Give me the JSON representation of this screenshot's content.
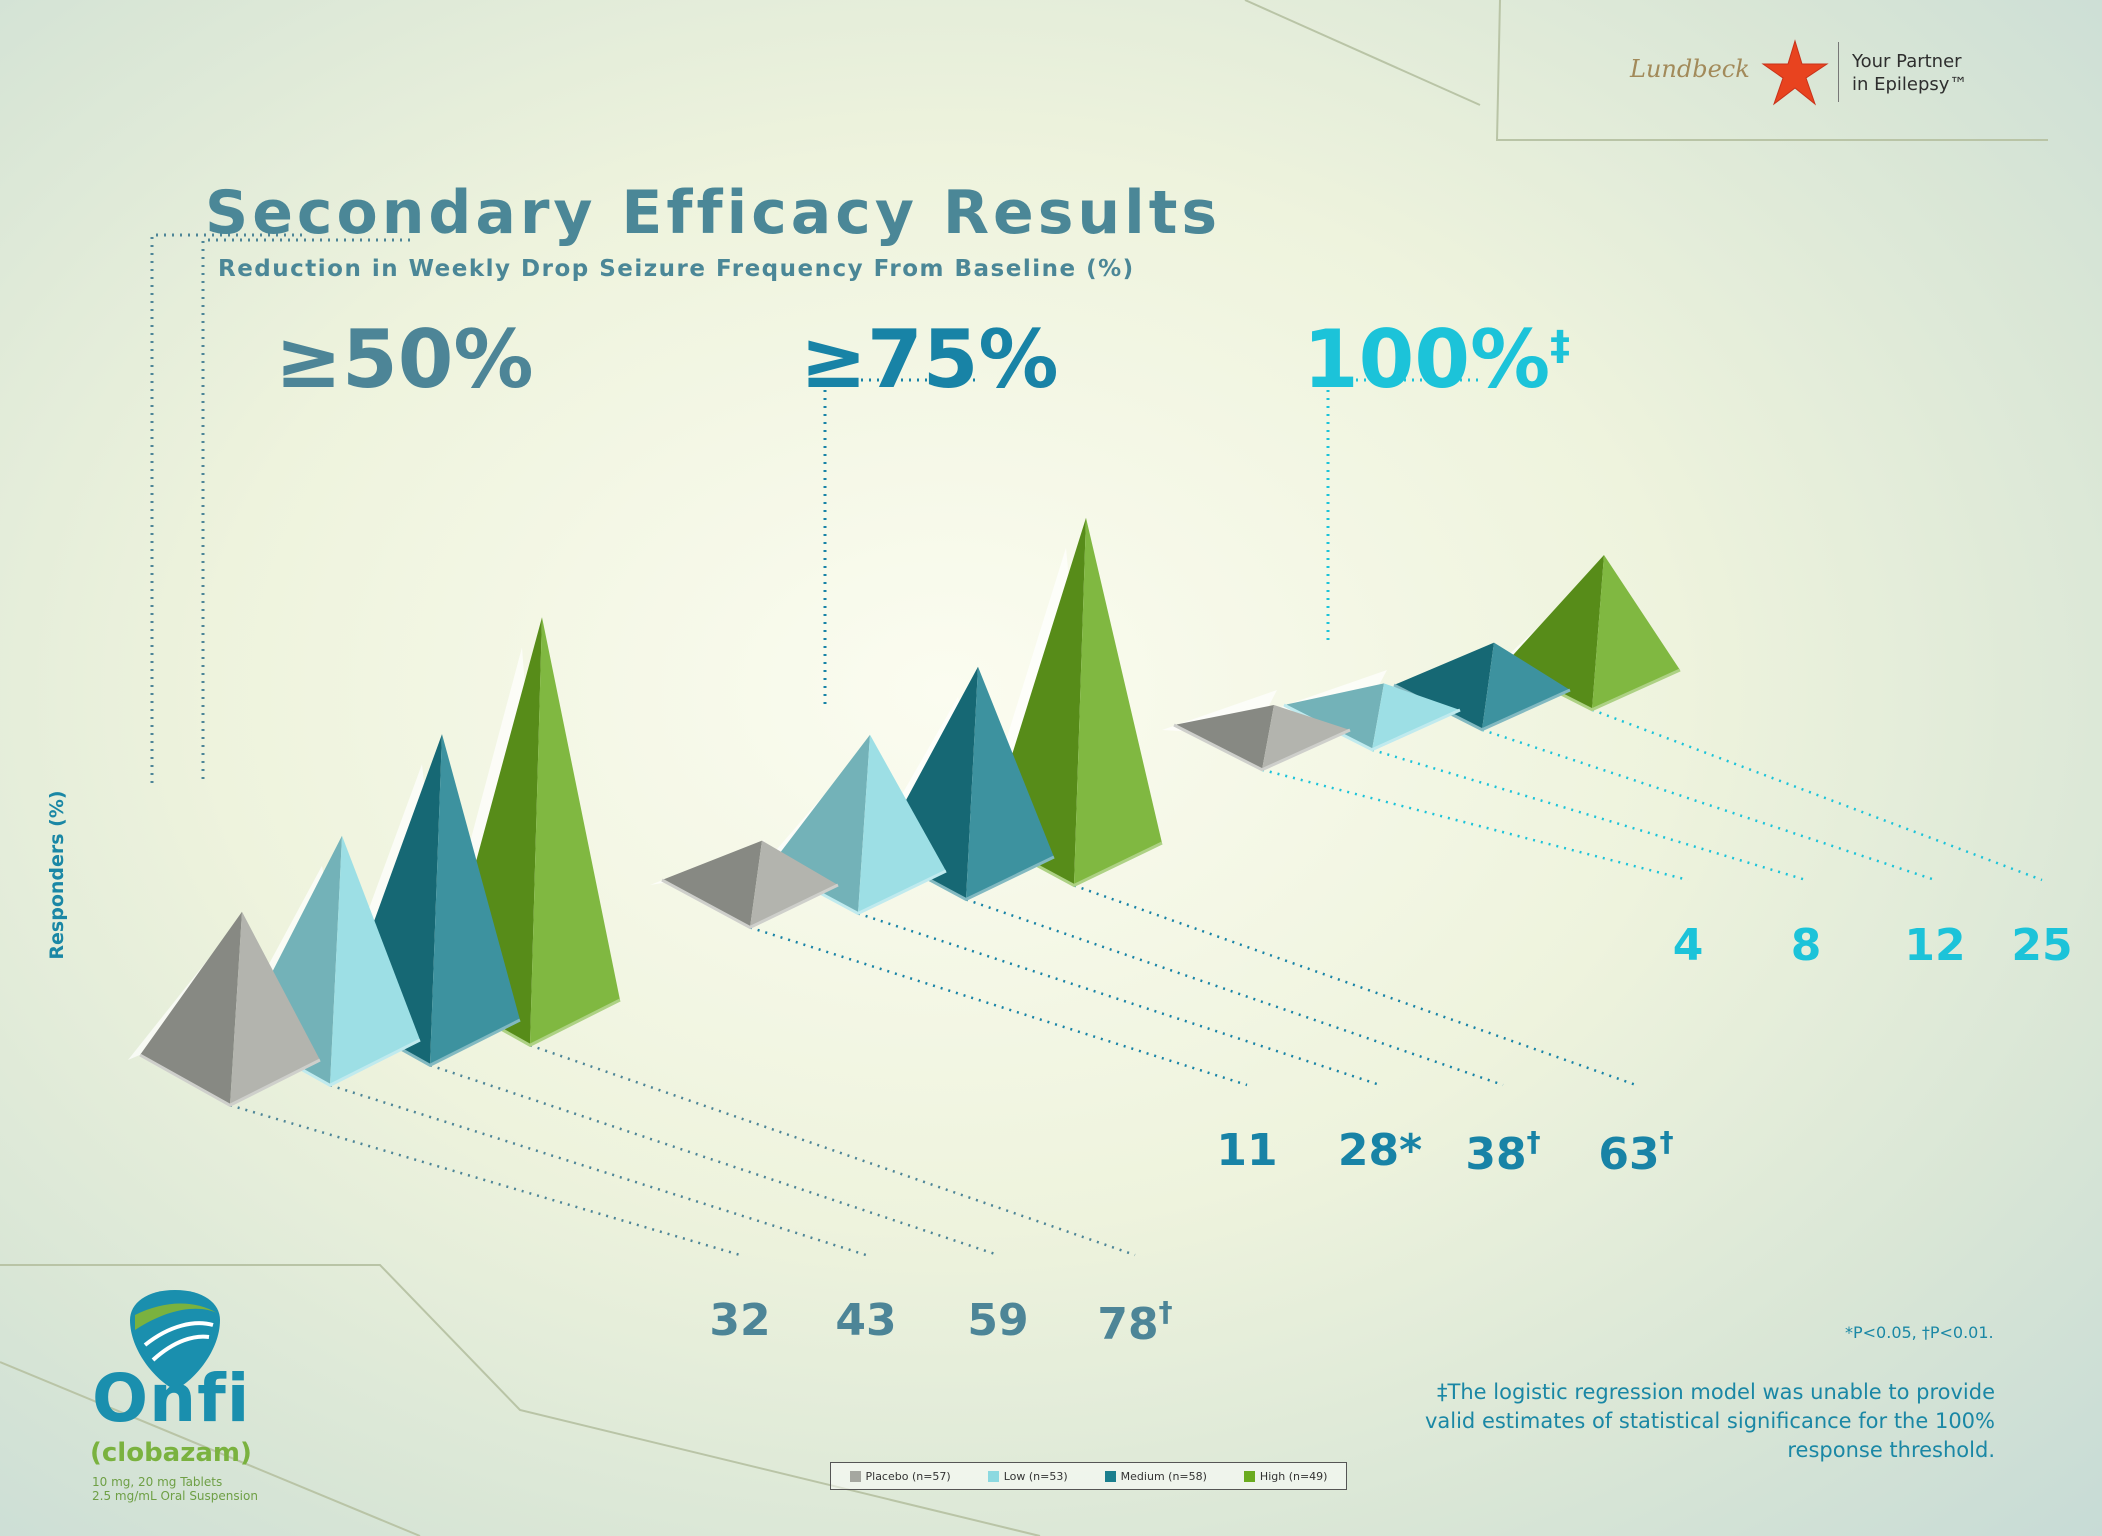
{
  "header": {
    "title": "Secondary Efficacy Results",
    "subtitle": "Reduction in Weekly Drop Seizure Frequency From Baseline (%)"
  },
  "company": {
    "name": "Lundbeck",
    "tagline_line1": "Your Partner",
    "tagline_line2": "in Epilepsy™"
  },
  "brand": {
    "name": "Onfi",
    "generic": "(clobazam)",
    "dose_line1": "10 mg, 20 mg Tablets",
    "dose_line2": "2.5 mg/mL Oral Suspension"
  },
  "footnotes": {
    "pvalues": "*P<0.05, †P<0.01.",
    "regression": "‡The logistic regression model was unable to provide valid estimates of statistical significance for the 100% response threshold."
  },
  "colors": {
    "placebo": "#a5a7a0",
    "low": "#8cd9e0",
    "medium": "#1b7f8e",
    "high": "#6aab1f",
    "label_50": "#4d8597",
    "label_75": "#1883a6",
    "label_100": "#1cc3d9"
  },
  "chart_data": {
    "type": "bar",
    "title": "Secondary Efficacy Results",
    "subtitle": "Reduction in Weekly Drop Seizure Frequency From Baseline (%)",
    "ylabel": "Responders (%)",
    "categories": [
      "≥50%",
      "≥75%",
      "100%‡"
    ],
    "series": [
      {
        "name": "Placebo (n=57)",
        "values": [
          32,
          11,
          4
        ],
        "markers": [
          "",
          "",
          ""
        ]
      },
      {
        "name": "Low (n=53)",
        "values": [
          43,
          28,
          8
        ],
        "markers": [
          "",
          "*",
          ""
        ]
      },
      {
        "name": "Medium (n=58)",
        "values": [
          59,
          38,
          12
        ],
        "markers": [
          "",
          "†",
          ""
        ]
      },
      {
        "name": "High (n=49)",
        "values": [
          78,
          63,
          25
        ],
        "markers": [
          "†",
          "†",
          ""
        ]
      }
    ]
  }
}
